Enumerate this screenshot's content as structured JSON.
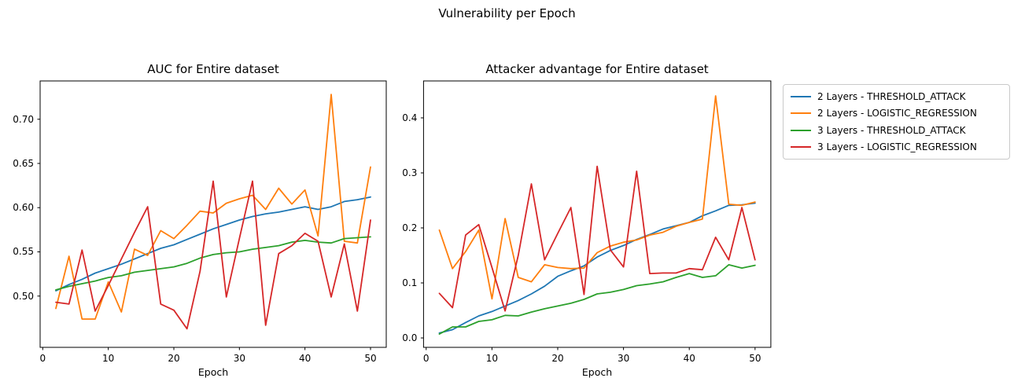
{
  "suptitle": "Vulnerability per Epoch",
  "colors": {
    "blue": "#1f77b4",
    "orange": "#ff7f0e",
    "green": "#2ca02c",
    "red": "#d62728"
  },
  "legend": {
    "position": "outside-right",
    "items": [
      {
        "label": "2 Layers - THRESHOLD_ATTACK",
        "color": "#1f77b4"
      },
      {
        "label": "2 Layers - LOGISTIC_REGRESSION",
        "color": "#ff7f0e"
      },
      {
        "label": "3 Layers - THRESHOLD_ATTACK",
        "color": "#2ca02c"
      },
      {
        "label": "3 Layers - LOGISTIC_REGRESSION",
        "color": "#d62728"
      }
    ]
  },
  "chart_data": [
    {
      "type": "line",
      "title": "AUC for Entire dataset",
      "xlabel": "Epoch",
      "x_ticks": [
        "0",
        "10",
        "20",
        "30",
        "40",
        "50"
      ],
      "y_ticks": [
        "0.50",
        "0.55",
        "0.60",
        "0.65",
        "0.70"
      ],
      "xlim": [
        -0.4,
        52.4
      ],
      "ylim": [
        0.442,
        0.7433
      ],
      "grid": false,
      "x": [
        2,
        4,
        6,
        8,
        10,
        12,
        14,
        16,
        18,
        20,
        22,
        24,
        26,
        28,
        30,
        32,
        34,
        36,
        38,
        40,
        42,
        44,
        46,
        48,
        50
      ],
      "series": [
        {
          "name": "2 Layers - THRESHOLD_ATTACK",
          "color": "#1f77b4",
          "values": [
            0.506,
            0.513,
            0.519,
            0.526,
            0.531,
            0.536,
            0.542,
            0.548,
            0.554,
            0.558,
            0.564,
            0.57,
            0.576,
            0.581,
            0.586,
            0.59,
            0.593,
            0.595,
            0.598,
            0.601,
            0.598,
            0.601,
            0.607,
            0.609,
            0.612
          ]
        },
        {
          "name": "2 Layers - LOGISTIC_REGRESSION",
          "color": "#ff7f0e",
          "values": [
            0.486,
            0.545,
            0.474,
            0.474,
            0.516,
            0.482,
            0.553,
            0.546,
            0.574,
            0.565,
            0.58,
            0.596,
            0.594,
            0.605,
            0.61,
            0.614,
            0.598,
            0.622,
            0.604,
            0.62,
            0.568,
            0.728,
            0.562,
            0.56,
            0.646
          ]
        },
        {
          "name": "3 Layers - THRESHOLD_ATTACK",
          "color": "#2ca02c",
          "values": [
            0.507,
            0.511,
            0.514,
            0.517,
            0.521,
            0.523,
            0.527,
            0.529,
            0.531,
            0.533,
            0.537,
            0.543,
            0.547,
            0.549,
            0.55,
            0.553,
            0.555,
            0.557,
            0.561,
            0.563,
            0.561,
            0.56,
            0.565,
            0.566,
            0.567
          ]
        },
        {
          "name": "3 Layers - LOGISTIC_REGRESSION",
          "color": "#d62728",
          "values": [
            0.493,
            0.491,
            0.552,
            0.483,
            0.512,
            0.542,
            0.572,
            0.601,
            0.491,
            0.484,
            0.463,
            0.528,
            0.63,
            0.499,
            0.565,
            0.63,
            0.467,
            0.548,
            0.557,
            0.571,
            0.562,
            0.499,
            0.559,
            0.483,
            0.586
          ]
        }
      ]
    },
    {
      "type": "line",
      "title": "Attacker advantage for Entire dataset",
      "xlabel": "Epoch",
      "x_ticks": [
        "0",
        "10",
        "20",
        "30",
        "40",
        "50"
      ],
      "y_ticks": [
        "0.0",
        "0.1",
        "0.2",
        "0.3",
        "0.4"
      ],
      "xlim": [
        -0.4,
        52.4
      ],
      "ylim": [
        -0.0171,
        0.4671
      ],
      "grid": false,
      "x": [
        2,
        4,
        6,
        8,
        10,
        12,
        14,
        16,
        18,
        20,
        22,
        24,
        26,
        28,
        30,
        32,
        34,
        36,
        38,
        40,
        42,
        44,
        46,
        48,
        50
      ],
      "series": [
        {
          "name": "2 Layers - THRESHOLD_ATTACK",
          "color": "#1f77b4",
          "values": [
            0.009,
            0.015,
            0.028,
            0.04,
            0.048,
            0.058,
            0.068,
            0.08,
            0.094,
            0.112,
            0.122,
            0.131,
            0.147,
            0.159,
            0.168,
            0.179,
            0.188,
            0.198,
            0.204,
            0.21,
            0.222,
            0.231,
            0.241,
            0.242,
            0.245
          ]
        },
        {
          "name": "2 Layers - LOGISTIC_REGRESSION",
          "color": "#ff7f0e",
          "values": [
            0.196,
            0.126,
            0.157,
            0.196,
            0.071,
            0.217,
            0.11,
            0.102,
            0.133,
            0.128,
            0.126,
            0.127,
            0.155,
            0.167,
            0.174,
            0.178,
            0.187,
            0.192,
            0.203,
            0.21,
            0.216,
            0.44,
            0.243,
            0.241,
            0.247
          ]
        },
        {
          "name": "3 Layers - THRESHOLD_ATTACK",
          "color": "#2ca02c",
          "values": [
            0.007,
            0.02,
            0.02,
            0.03,
            0.033,
            0.041,
            0.04,
            0.047,
            0.053,
            0.058,
            0.063,
            0.07,
            0.08,
            0.083,
            0.088,
            0.095,
            0.098,
            0.102,
            0.11,
            0.117,
            0.11,
            0.113,
            0.133,
            0.127,
            0.132
          ]
        },
        {
          "name": "3 Layers - LOGISTIC_REGRESSION",
          "color": "#d62728",
          "values": [
            0.081,
            0.055,
            0.187,
            0.206,
            0.128,
            0.049,
            0.15,
            0.28,
            0.142,
            0.19,
            0.237,
            0.079,
            0.312,
            0.16,
            0.129,
            0.303,
            0.117,
            0.118,
            0.118,
            0.126,
            0.124,
            0.183,
            0.142,
            0.237,
            0.142
          ]
        }
      ]
    }
  ]
}
